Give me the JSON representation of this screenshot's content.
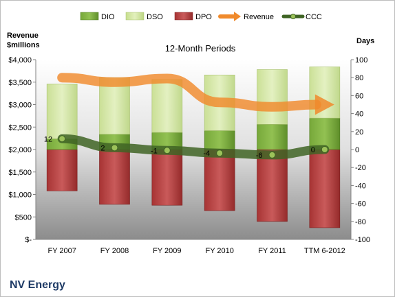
{
  "chart_data": {
    "type": "bar",
    "title": "12-Month Periods",
    "company": "NV Energy",
    "left_axis": {
      "label_line1": "Revenue",
      "label_line2": "$millions",
      "ylim": [
        0,
        4000
      ],
      "ticks": [
        "$-",
        "$500",
        "$1,000",
        "$1,500",
        "$2,000",
        "$2,500",
        "$3,000",
        "$3,500",
        "$4,000"
      ]
    },
    "right_axis": {
      "label": "Days",
      "ylim": [
        -100,
        100
      ],
      "ticks": [
        "-100",
        "-80",
        "-60",
        "-40",
        "-20",
        "0",
        "20",
        "40",
        "60",
        "80",
        "100"
      ]
    },
    "categories": [
      "FY 2007",
      "FY 2008",
      "FY 2009",
      "FY 2010",
      "FY 2011",
      "TTM 6-2012"
    ],
    "legend": [
      "DIO",
      "DSO",
      "DPO",
      "Revenue",
      "CCC"
    ],
    "series": [
      {
        "name": "DIO",
        "axis": "days",
        "values": [
          12,
          17,
          19,
          21,
          28,
          35
        ]
      },
      {
        "name": "DSO",
        "axis": "days",
        "values": [
          61,
          63,
          59,
          62,
          61,
          57
        ]
      },
      {
        "name": "DPO",
        "axis": "days",
        "values": [
          -46,
          -61,
          -62,
          -68,
          -80,
          -87
        ]
      },
      {
        "name": "Revenue",
        "axis": "millions",
        "values": [
          3600,
          3500,
          3580,
          3050,
          2950,
          3000
        ]
      },
      {
        "name": "CCC",
        "axis": "days",
        "values": [
          12,
          2,
          -1,
          -4,
          -6,
          0
        ]
      }
    ],
    "ccc_labels": [
      "12",
      "2",
      "-1",
      "-4",
      "-6",
      "0"
    ],
    "colors": {
      "DIO": "#6a9a2e",
      "DSO": "#d4e8a6",
      "DPO": "#b23a3a",
      "Revenue": "#f08a2c",
      "CCC": "#3f6424",
      "plot_top": "#ffffff",
      "plot_bottom": "#8c8c8c"
    }
  }
}
